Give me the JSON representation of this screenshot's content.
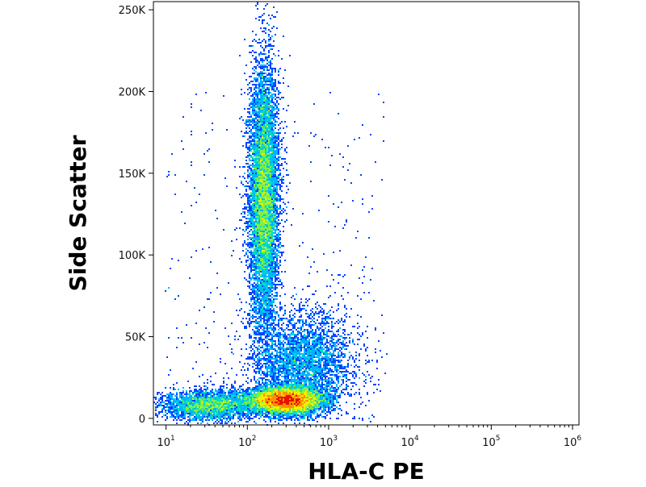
{
  "chart_data": {
    "type": "scatter",
    "subtype": "flow-cytometry-density-dot-plot",
    "xlabel": "HLA-C PE",
    "ylabel": "Side Scatter",
    "x_scale": "log",
    "xlim": [
      7,
      1200000
    ],
    "ylim": [
      -4000,
      255000
    ],
    "x_ticks": [
      {
        "value": 10,
        "base": "10",
        "exp": "1"
      },
      {
        "value": 100,
        "base": "10",
        "exp": "2"
      },
      {
        "value": 1000,
        "base": "10",
        "exp": "3"
      },
      {
        "value": 10000,
        "base": "10",
        "exp": "4"
      },
      {
        "value": 100000,
        "base": "10",
        "exp": "5"
      },
      {
        "value": 1000000,
        "base": "10",
        "exp": "6"
      }
    ],
    "y_ticks": [
      {
        "value": 0,
        "label": "0"
      },
      {
        "value": 50000,
        "label": "50K"
      },
      {
        "value": 100000,
        "label": "100K"
      },
      {
        "value": 150000,
        "label": "150K"
      },
      {
        "value": 200000,
        "label": "200K"
      },
      {
        "value": 250000,
        "label": "250K"
      }
    ],
    "grid": false,
    "colormap": [
      "#0000cc",
      "#0044ff",
      "#00b4ff",
      "#00e0c0",
      "#80f040",
      "#f0f000",
      "#ff9000",
      "#e81000"
    ],
    "populations": [
      {
        "x_center": 160,
        "x_spread_log10": 0.09,
        "y_center": 135000,
        "y_spread": 40000,
        "tilt_log10_per_unit": 0.0,
        "weight": 9000
      },
      {
        "x_center": 300,
        "x_spread_log10": 0.22,
        "y_center": 11000,
        "y_spread": 4000,
        "tilt_log10_per_unit": 0.0,
        "weight": 9000
      },
      {
        "x_center": 35,
        "x_spread_log10": 0.3,
        "y_center": 8000,
        "y_spread": 4500,
        "tilt_log10_per_unit": 0.0,
        "weight": 3000
      },
      {
        "x_center": 500,
        "x_spread_log10": 0.3,
        "y_center": 35000,
        "y_spread": 15000,
        "tilt_log10_per_unit": 0.0,
        "weight": 3500
      }
    ]
  }
}
